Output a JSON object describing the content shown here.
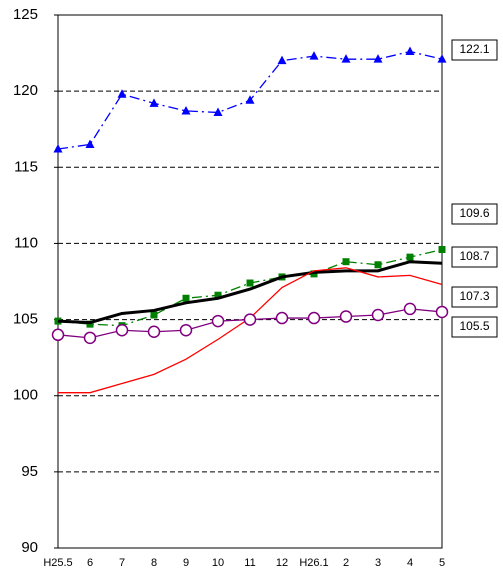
{
  "chart_data": {
    "type": "line",
    "categories": [
      "H25.5",
      "6",
      "7",
      "8",
      "9",
      "10",
      "11",
      "12",
      "H26.1",
      "2",
      "3",
      "4",
      "5"
    ],
    "ylim": [
      90,
      125
    ],
    "yticks": [
      90,
      95,
      100,
      105,
      110,
      115,
      120,
      125
    ],
    "grid": true,
    "series": [
      {
        "color": "#0000ff",
        "marker": "triangle",
        "dash": "dashdot",
        "values": [
          116.2,
          116.5,
          119.8,
          119.2,
          118.7,
          118.6,
          119.4,
          122.0,
          122.3,
          122.1,
          122.1,
          122.6,
          122.1
        ]
      },
      {
        "color": "#008000",
        "marker": "square",
        "dash": "dashdot",
        "values": [
          104.9,
          104.7,
          104.6,
          105.3,
          106.4,
          106.6,
          107.4,
          107.8,
          108.0,
          108.8,
          108.6,
          109.1,
          109.6
        ]
      },
      {
        "color": "#000000",
        "marker": "none",
        "dash": "solid",
        "values": [
          104.9,
          104.8,
          105.4,
          105.6,
          106.1,
          106.4,
          107.0,
          107.8,
          108.1,
          108.2,
          108.2,
          108.8,
          108.7
        ]
      },
      {
        "color": "#ff0000",
        "marker": "none",
        "dash": "solid",
        "values": [
          100.2,
          100.2,
          100.8,
          101.4,
          102.4,
          103.7,
          105.1,
          107.1,
          108.2,
          108.4,
          107.8,
          107.9,
          107.3
        ]
      },
      {
        "color": "#800080",
        "marker": "circle",
        "dash": "solid",
        "values": [
          104.0,
          103.8,
          104.3,
          104.2,
          104.3,
          104.9,
          105.0,
          105.1,
          105.1,
          105.2,
          105.3,
          105.7,
          105.5
        ]
      }
    ]
  }
}
